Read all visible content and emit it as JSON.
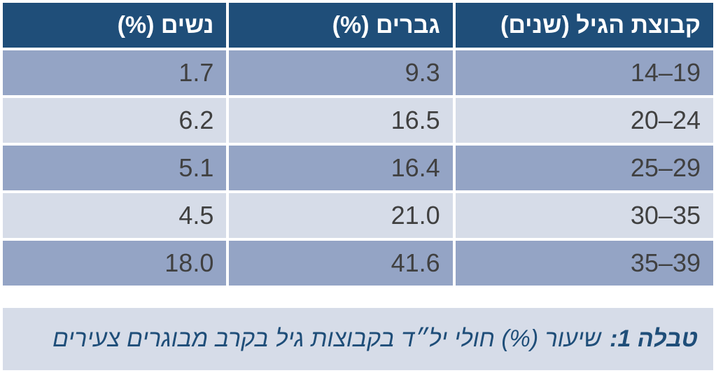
{
  "table": {
    "headers": {
      "age_group": "קבוצת הגיל (שנים)",
      "men": "גברים (%)",
      "women": "נשים (%)"
    },
    "rows": [
      {
        "age_group": "19–14",
        "men": "9.3",
        "women": "1.7"
      },
      {
        "age_group": "24–20",
        "men": "16.5",
        "women": "6.2"
      },
      {
        "age_group": "29–25",
        "men": "16.4",
        "women": "5.1"
      },
      {
        "age_group": "35–30",
        "men": "21.0",
        "women": "4.5"
      },
      {
        "age_group": "39–35",
        "men": "41.6",
        "women": "18.0"
      }
    ]
  },
  "caption": {
    "label": "טבלה 1:",
    "text": "שיעור (%) חולי יל״ד בקבוצות גיל בקרב מבוגרים צעירים"
  },
  "colors": {
    "header_bg": "#1f4e79",
    "row_dark": "#94a4c5",
    "row_light": "#d6dce8",
    "caption_text": "#1f4e79"
  }
}
